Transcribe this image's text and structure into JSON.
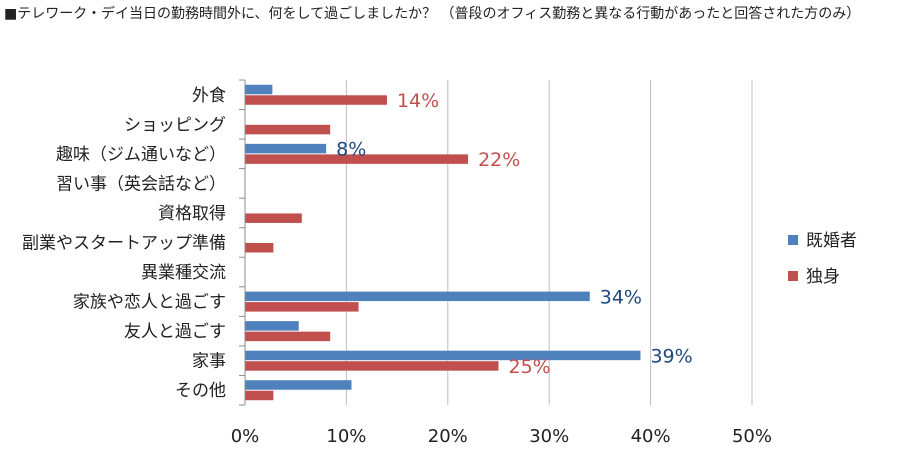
{
  "chart_data": {
    "type": "bar",
    "orientation": "horizontal",
    "title": "■テレワーク・デイ当日の勤務時間外に、何をして過ごしましたか？ （普段のオフィス勤務と異なる行動があったと回答された方のみ）",
    "categories": [
      "外食",
      "ショッピング",
      "趣味（ジム通いなど）",
      "習い事（英会話など）",
      "資格取得",
      "副業やスタートアップ準備",
      "異業種交流",
      "家族や恋人と過ごす",
      "友人と過ごす",
      "家事",
      "その他"
    ],
    "series": [
      {
        "name": "既婚者",
        "color": "#4f81bd",
        "label_color": "#1f497d",
        "values": [
          2.7,
          0,
          8,
          0,
          0,
          0,
          0,
          34,
          5.3,
          39,
          10.5
        ],
        "data_labels": [
          "",
          "",
          "8%",
          "",
          "",
          "",
          "",
          "34%",
          "",
          "39%",
          ""
        ]
      },
      {
        "name": "独身",
        "color": "#c0504d",
        "label_color": "#c0504d",
        "values": [
          14,
          8.4,
          22,
          0,
          5.6,
          2.8,
          0,
          11.2,
          8.4,
          25,
          2.8
        ],
        "data_labels": [
          "14%",
          "",
          "22%",
          "",
          "",
          "",
          "",
          "",
          "",
          "25%",
          ""
        ]
      }
    ],
    "xlim": [
      0,
      50
    ],
    "xticks": [
      "0%",
      "10%",
      "20%",
      "30%",
      "40%",
      "50%"
    ],
    "grid": true,
    "legend_position": "right"
  }
}
